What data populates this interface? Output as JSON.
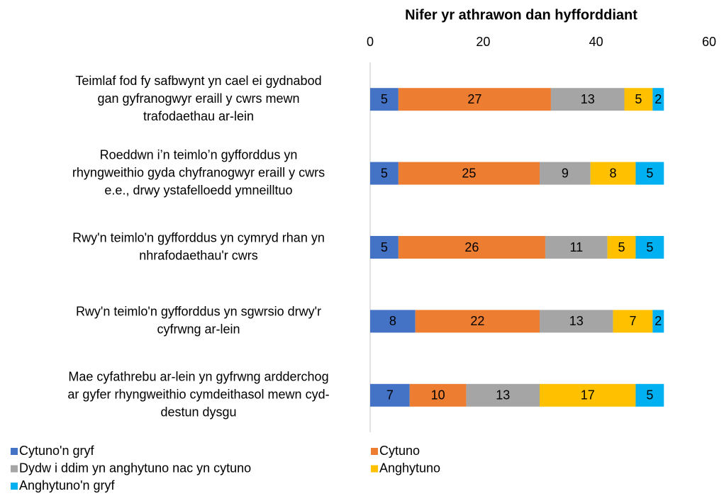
{
  "chart_data": {
    "type": "bar",
    "orientation": "horizontal",
    "stacked": true,
    "xlabel": "Nifer yr athrawon dan hyfforddiant",
    "categories": [
      [
        "Teimlaf fod fy safbwynt yn cael ei gydnabod",
        "gan gyfranogwyr eraill y cwrs mewn",
        "trafodaethau ar-lein"
      ],
      [
        "Roeddwn i’n teimlo’n gyfforddus yn",
        "rhyngweithio gyda chyfranogwyr eraill y cwrs",
        "e.e., drwy ystafelloedd ymneilltuo"
      ],
      [
        "Rwy'n teimlo'n gyfforddus yn cymryd rhan yn",
        "nhrafodaethau'r cwrs"
      ],
      [
        "Rwy'n teimlo'n gyfforddus yn sgwrsio drwy'r",
        "cyfrwng ar-lein"
      ],
      [
        "Mae cyfathrebu ar-lein yn gyfrwng ardderchog",
        "ar gyfer rhyngweithio cymdeithasol mewn cyd-",
        "destun dysgu"
      ]
    ],
    "series": [
      {
        "name": "Cytuno'n gryf",
        "color": "#4472c4",
        "values": [
          5,
          5,
          5,
          8,
          7
        ]
      },
      {
        "name": "Cytuno",
        "color": "#ed7d31",
        "values": [
          27,
          25,
          26,
          22,
          10
        ]
      },
      {
        "name": "Dydw i ddim yn anghytuno nac yn cytuno",
        "color": "#a5a5a5",
        "values": [
          13,
          9,
          11,
          13,
          13
        ]
      },
      {
        "name": "Anghytuno",
        "color": "#ffc000",
        "values": [
          5,
          8,
          5,
          7,
          17
        ]
      },
      {
        "name": "Anghytuno'n gryf",
        "color": "#00b0f0",
        "values": [
          2,
          5,
          5,
          2,
          5
        ]
      }
    ],
    "xlim": [
      0,
      60
    ],
    "xticks": [
      0,
      20,
      40,
      60
    ],
    "grid": false,
    "legend": "bottom"
  }
}
